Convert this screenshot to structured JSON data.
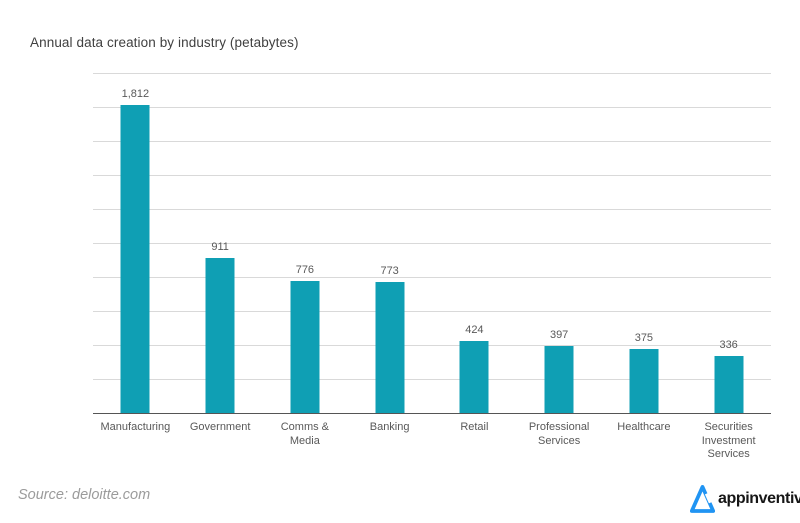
{
  "chart_data": {
    "type": "bar",
    "title": "Annual data creation by industry (petabytes)",
    "categories": [
      "Manufacturing",
      "Government",
      "Comms & Media",
      "Banking",
      "Retail",
      "Professional Services",
      "Healthcare",
      "Securities Investment Services"
    ],
    "values": [
      1812,
      911,
      776,
      773,
      424,
      397,
      375,
      336
    ],
    "value_labels": [
      "1,812",
      "911",
      "776",
      "773",
      "424",
      "397",
      "375",
      "336"
    ],
    "xlabel": "",
    "ylabel": "",
    "ylim": [
      0,
      2000
    ],
    "gridline_step": 200,
    "grid": "horizontal-only",
    "y_tick_labels_visible": false,
    "legend": "none",
    "bar_color": "#0f9fb4",
    "gridline_color": "#d9d9d9",
    "axis_color": "#555555",
    "label_color": "#595959",
    "title_color": "#404040"
  },
  "footer": {
    "source": "Source: deloitte.com",
    "logo_text": "appinventiv",
    "logo_color": "#2094f3"
  }
}
